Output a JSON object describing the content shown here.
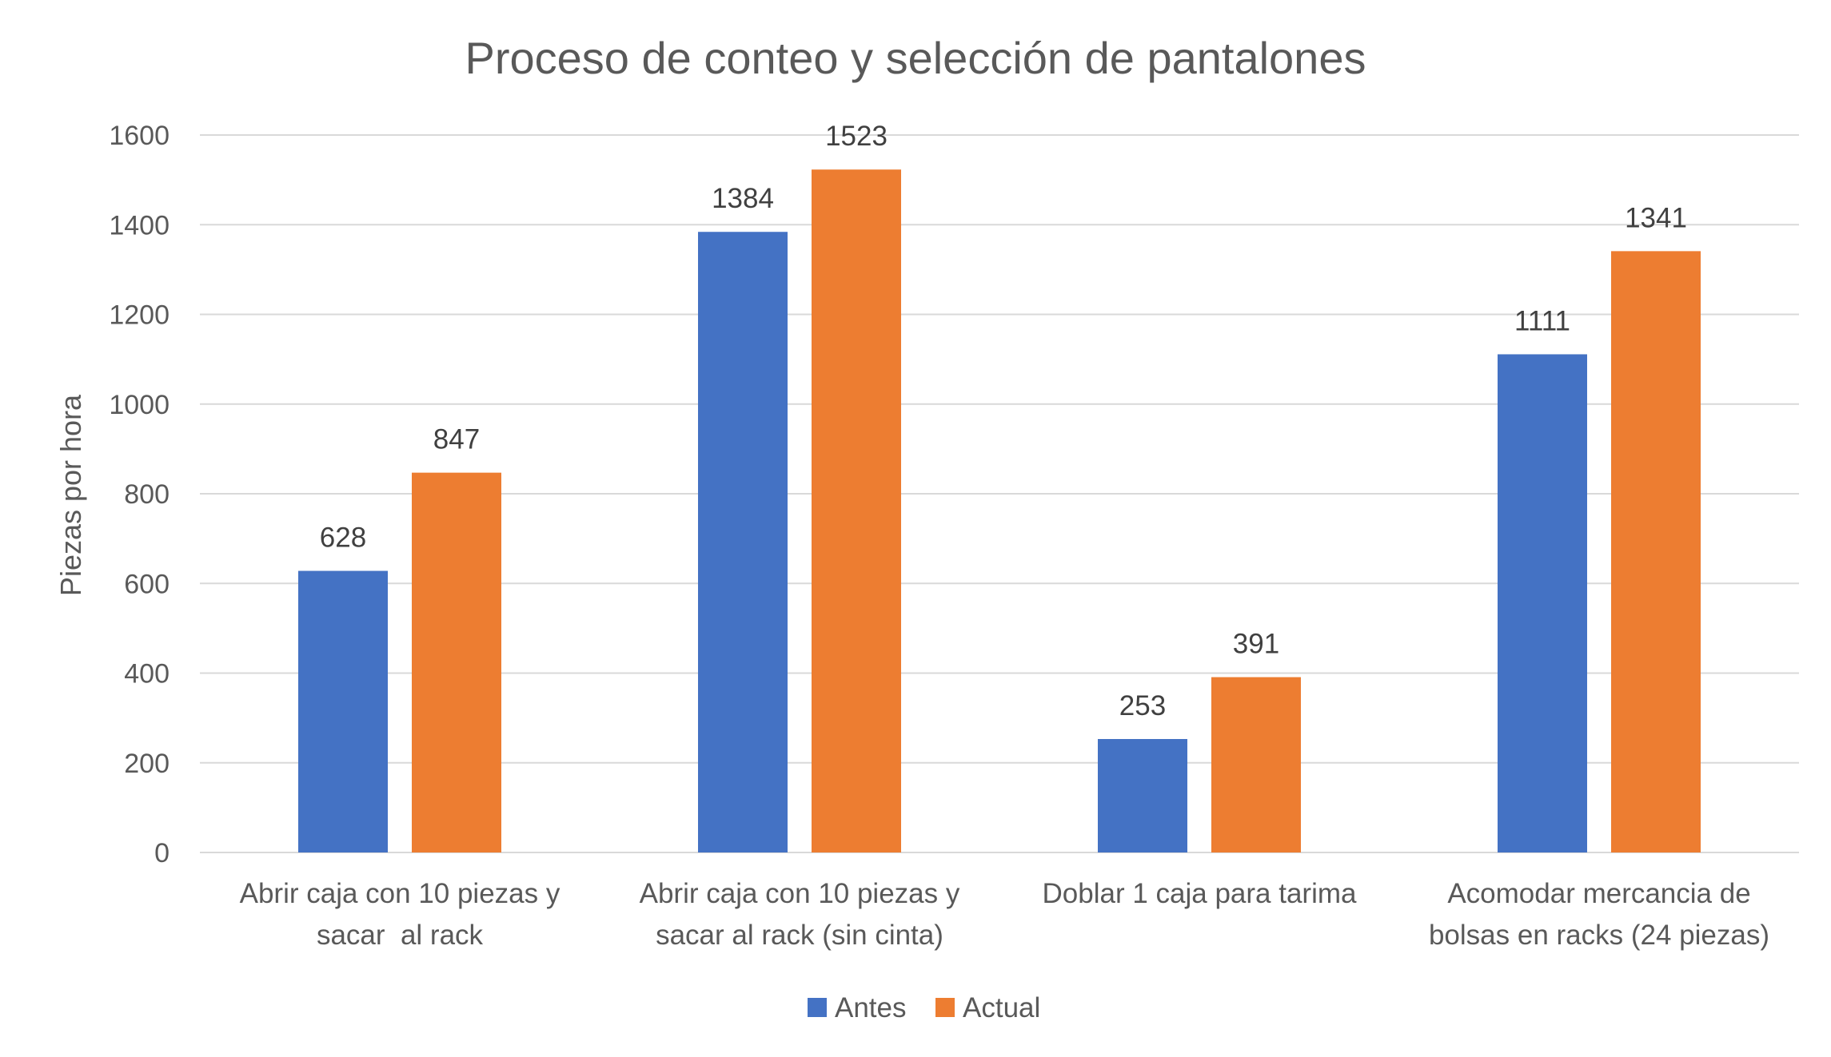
{
  "chart_data": {
    "type": "bar",
    "title": "Proceso de conteo y selección de pantalones",
    "xlabel": "",
    "ylabel": "Piezas por hora",
    "ylim": [
      0,
      1600
    ],
    "y_ticks": [
      "0",
      "200",
      "400",
      "600",
      "800",
      "1000",
      "1200",
      "1400",
      "1600"
    ],
    "categories": [
      [
        "Abrir caja con 10 piezas y",
        "sacar  al rack"
      ],
      [
        "Abrir caja con 10 piezas y",
        "sacar al rack (sin cinta)"
      ],
      [
        "Doblar 1 caja para tarima"
      ],
      [
        "Acomodar mercancia de",
        "bolsas en racks (24 piezas)"
      ]
    ],
    "series": [
      {
        "name": "Antes",
        "color": "#4472c4",
        "values": [
          628,
          1384,
          253,
          1111
        ]
      },
      {
        "name": "Actual",
        "color": "#ed7d31",
        "values": [
          847,
          1523,
          391,
          1341
        ]
      }
    ],
    "grid": true,
    "legend_position": "bottom",
    "data_labels": true
  }
}
